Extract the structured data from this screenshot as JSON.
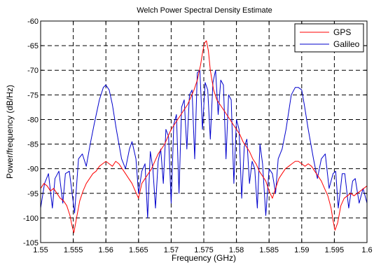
{
  "chart_data": {
    "type": "line",
    "title": "Welch Power Spectral Density Estimate",
    "xlabel": "Frequency (GHz)",
    "ylabel": "Power/frequency (dB/Hz)",
    "xlim": [
      1.55,
      1.6
    ],
    "ylim": [
      -105,
      -60
    ],
    "xticks": [
      1.55,
      1.555,
      1.56,
      1.565,
      1.57,
      1.575,
      1.58,
      1.585,
      1.59,
      1.595,
      1.6
    ],
    "xtick_labels": [
      "1.55",
      "1.555",
      "1.56",
      "1.565",
      "1.57",
      "1.575",
      "1.58",
      "1.585",
      "1.59",
      "1.595",
      "1.6"
    ],
    "yticks": [
      -60,
      -65,
      -70,
      -75,
      -80,
      -85,
      -90,
      -95,
      -100,
      -105
    ],
    "ytick_labels": [
      "-60",
      "-65",
      "-70",
      "-75",
      "-80",
      "-85",
      "-90",
      "-95",
      "-100",
      "-105"
    ],
    "grid": true,
    "legend_position": "top-right",
    "series": [
      {
        "name": "GPS",
        "color": "#ff0000",
        "x": [
          1.55,
          1.5505,
          1.551,
          1.5515,
          1.552,
          1.5525,
          1.553,
          1.5535,
          1.554,
          1.5545,
          1.5548,
          1.5551,
          1.5555,
          1.556,
          1.5565,
          1.557,
          1.5575,
          1.558,
          1.5585,
          1.559,
          1.5595,
          1.56,
          1.5605,
          1.561,
          1.5615,
          1.562,
          1.5625,
          1.563,
          1.5635,
          1.564,
          1.5645,
          1.565,
          1.5655,
          1.566,
          1.5665,
          1.567,
          1.5675,
          1.568,
          1.5685,
          1.569,
          1.5695,
          1.57,
          1.5705,
          1.571,
          1.5715,
          1.572,
          1.5725,
          1.573,
          1.5735,
          1.574,
          1.5745,
          1.5748,
          1.5751,
          1.5754,
          1.5757,
          1.576,
          1.5765,
          1.577,
          1.5775,
          1.578,
          1.5785,
          1.579,
          1.5795,
          1.58,
          1.5805,
          1.581,
          1.5815,
          1.582,
          1.5825,
          1.583,
          1.5835,
          1.584,
          1.5845,
          1.585,
          1.5855,
          1.586,
          1.5865,
          1.587,
          1.5875,
          1.588,
          1.5885,
          1.589,
          1.5895,
          1.59,
          1.5905,
          1.591,
          1.5915,
          1.592,
          1.5925,
          1.593,
          1.5935,
          1.594,
          1.5945,
          1.5948,
          1.5951,
          1.5955,
          1.596,
          1.5965,
          1.597,
          1.5975,
          1.598,
          1.5985,
          1.599,
          1.5995,
          1.6
        ],
        "y": [
          -94,
          -93,
          -93.5,
          -94.5,
          -94,
          -95,
          -96,
          -96.5,
          -97.5,
          -99.5,
          -101.5,
          -103,
          -100,
          -96.5,
          -94.5,
          -93,
          -92,
          -91,
          -90.5,
          -89.5,
          -89,
          -88.5,
          -89,
          -89.5,
          -88.5,
          -89,
          -90,
          -91,
          -92,
          -93,
          -94.5,
          -96,
          -93,
          -92,
          -91,
          -90,
          -88.5,
          -87,
          -86,
          -85,
          -83.5,
          -82,
          -81,
          -80,
          -79,
          -78,
          -77,
          -75.5,
          -74,
          -72,
          -69,
          -66.5,
          -64.5,
          -64,
          -66,
          -70,
          -74,
          -76,
          -77,
          -78,
          -79,
          -80,
          -81,
          -82,
          -83,
          -84.5,
          -85.5,
          -86.5,
          -88,
          -89,
          -90.5,
          -91.5,
          -92.5,
          -94.5,
          -96,
          -94,
          -92,
          -91,
          -90,
          -89.5,
          -89,
          -88.5,
          -88.5,
          -89,
          -89.5,
          -89,
          -89.5,
          -90.5,
          -91.5,
          -92.5,
          -94,
          -95.5,
          -98,
          -100.5,
          -102.5,
          -101,
          -97.5,
          -96,
          -95.5,
          -95,
          -95.5,
          -95,
          -94.5,
          -94,
          -93.5
        ]
      },
      {
        "name": "Galileo",
        "color": "#0000cc",
        "x": [
          1.55,
          1.5506,
          1.5512,
          1.5518,
          1.5522,
          1.5528,
          1.5534,
          1.5538,
          1.5544,
          1.5552,
          1.5558,
          1.5564,
          1.557,
          1.5576,
          1.5582,
          1.559,
          1.5596,
          1.56,
          1.5605,
          1.561,
          1.5616,
          1.5624,
          1.563,
          1.5636,
          1.564,
          1.5646,
          1.565,
          1.5655,
          1.566,
          1.5664,
          1.5668,
          1.5672,
          1.5676,
          1.568,
          1.5684,
          1.5688,
          1.5692,
          1.5696,
          1.57,
          1.5704,
          1.5708,
          1.5712,
          1.5716,
          1.572,
          1.5724,
          1.5728,
          1.5732,
          1.5736,
          1.574,
          1.5744,
          1.5748,
          1.5752,
          1.5756,
          1.576,
          1.5764,
          1.5768,
          1.5772,
          1.5776,
          1.578,
          1.5784,
          1.5788,
          1.5792,
          1.5796,
          1.58,
          1.5804,
          1.5808,
          1.5812,
          1.5816,
          1.582,
          1.5824,
          1.5828,
          1.5832,
          1.5836,
          1.584,
          1.5845,
          1.585,
          1.5855,
          1.586,
          1.5864,
          1.587,
          1.5876,
          1.5884,
          1.589,
          1.5895,
          1.59,
          1.5904,
          1.591,
          1.5918,
          1.5924,
          1.593,
          1.5936,
          1.5942,
          1.5948,
          1.5952,
          1.5956,
          1.5962,
          1.5966,
          1.5972,
          1.5978,
          1.5982,
          1.5988,
          1.5994,
          1.6
        ],
        "y": [
          -98,
          -93,
          -91,
          -98,
          -92,
          -90.5,
          -97,
          -91,
          -90.5,
          -99,
          -88,
          -87,
          -89.5,
          -85,
          -81,
          -76,
          -73.5,
          -73,
          -74,
          -77,
          -82,
          -88,
          -90,
          -86,
          -84.5,
          -88,
          -95,
          -90.5,
          -89,
          -100,
          -86.5,
          -90,
          -98,
          -88.5,
          -86,
          -93,
          -82,
          -83.5,
          -97,
          -81,
          -79,
          -95,
          -77.5,
          -76,
          -86,
          -75,
          -74,
          -88,
          -70.5,
          -70,
          -82,
          -72.5,
          -74,
          -84,
          -72.5,
          -70,
          -79,
          -72,
          -73,
          -88,
          -75,
          -76,
          -93,
          -80,
          -82,
          -96,
          -85.5,
          -84,
          -93,
          -88.5,
          -90,
          -98,
          -85,
          -89,
          -99.5,
          -90,
          -91,
          -95,
          -88,
          -86,
          -82,
          -75,
          -73.5,
          -73.5,
          -74,
          -77,
          -82,
          -88,
          -92,
          -88,
          -87,
          -94,
          -91,
          -90.5,
          -98,
          -91,
          -91,
          -98,
          -92.5,
          -92,
          -97,
          -94,
          -97
        ]
      }
    ]
  }
}
